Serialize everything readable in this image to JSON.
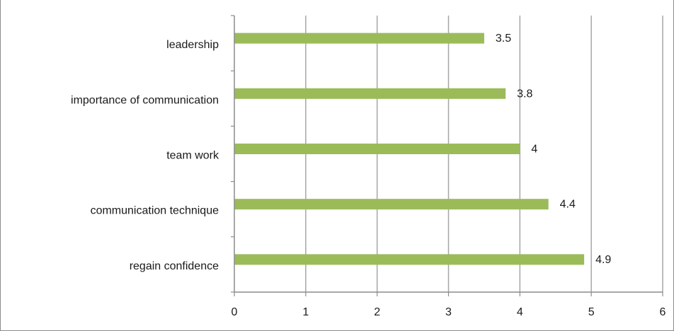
{
  "chart_data": {
    "type": "bar",
    "orientation": "horizontal",
    "categories": [
      "leadership",
      "importance of communication",
      "team work",
      "communication technique",
      "regain confidence"
    ],
    "values": [
      3.5,
      3.8,
      4,
      4.4,
      4.9
    ],
    "data_labels": [
      "3.5",
      "3.8",
      "4",
      "4.4",
      "4.9"
    ],
    "xlim": [
      0,
      6
    ],
    "x_ticks": [
      "0",
      "1",
      "2",
      "3",
      "4",
      "5",
      "6"
    ],
    "grid": "vertical",
    "legend": "none",
    "title": "",
    "xlabel": "",
    "ylabel": "",
    "colors": {
      "bar": "#9bbb59",
      "grid": "#a6a6a6",
      "axis": "#8c8c8c"
    }
  }
}
